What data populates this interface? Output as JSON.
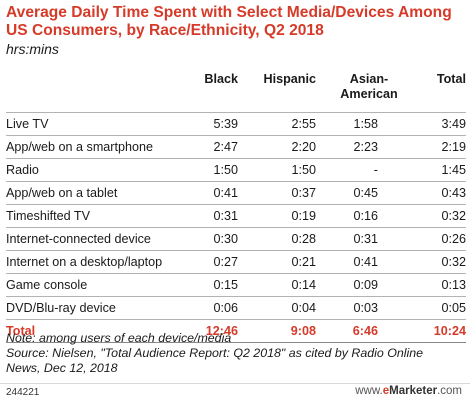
{
  "chart_data": {
    "type": "table",
    "title": "Average Daily Time Spent with Select Media/Devices Among US Consumers, by Race/Ethnicity, Q2 2018",
    "subtitle": "hrs:mins",
    "columns": [
      "Black",
      "Hispanic",
      "Asian-American",
      "Total"
    ],
    "rows": [
      {
        "label": "Live TV",
        "values": [
          "5:39",
          "2:55",
          "1:58",
          "3:49"
        ]
      },
      {
        "label": "App/web on a smartphone",
        "values": [
          "2:47",
          "2:20",
          "2:23",
          "2:19"
        ]
      },
      {
        "label": "Radio",
        "values": [
          "1:50",
          "1:50",
          "-",
          "1:45"
        ]
      },
      {
        "label": "App/web on a tablet",
        "values": [
          "0:41",
          "0:37",
          "0:45",
          "0:43"
        ]
      },
      {
        "label": "Timeshifted TV",
        "values": [
          "0:31",
          "0:19",
          "0:16",
          "0:32"
        ]
      },
      {
        "label": "Internet-connected device",
        "values": [
          "0:30",
          "0:28",
          "0:31",
          "0:26"
        ]
      },
      {
        "label": "Internet on a desktop/laptop",
        "values": [
          "0:27",
          "0:21",
          "0:41",
          "0:32"
        ]
      },
      {
        "label": "Game console",
        "values": [
          "0:15",
          "0:14",
          "0:09",
          "0:13"
        ]
      },
      {
        "label": "DVD/Blu-ray device",
        "values": [
          "0:06",
          "0:04",
          "0:03",
          "0:05"
        ]
      }
    ],
    "total": {
      "label": "Total",
      "values": [
        "12:46",
        "9:08",
        "6:46",
        "10:24"
      ]
    }
  },
  "notes": {
    "line1": "Note: among users of each device/media",
    "line2": "Source: Nielsen, \"Total Audience Report: Q2 2018\" as cited by Radio Online",
    "line3": "News, Dec 12, 2018"
  },
  "footer": {
    "chart_id": "244221",
    "brand_prefix": "www.",
    "brand_e": "e",
    "brand_rest": "Marketer",
    "brand_suffix": ".com"
  },
  "colors": {
    "accent": "#d63a28",
    "rule": "#b3b3b3"
  }
}
